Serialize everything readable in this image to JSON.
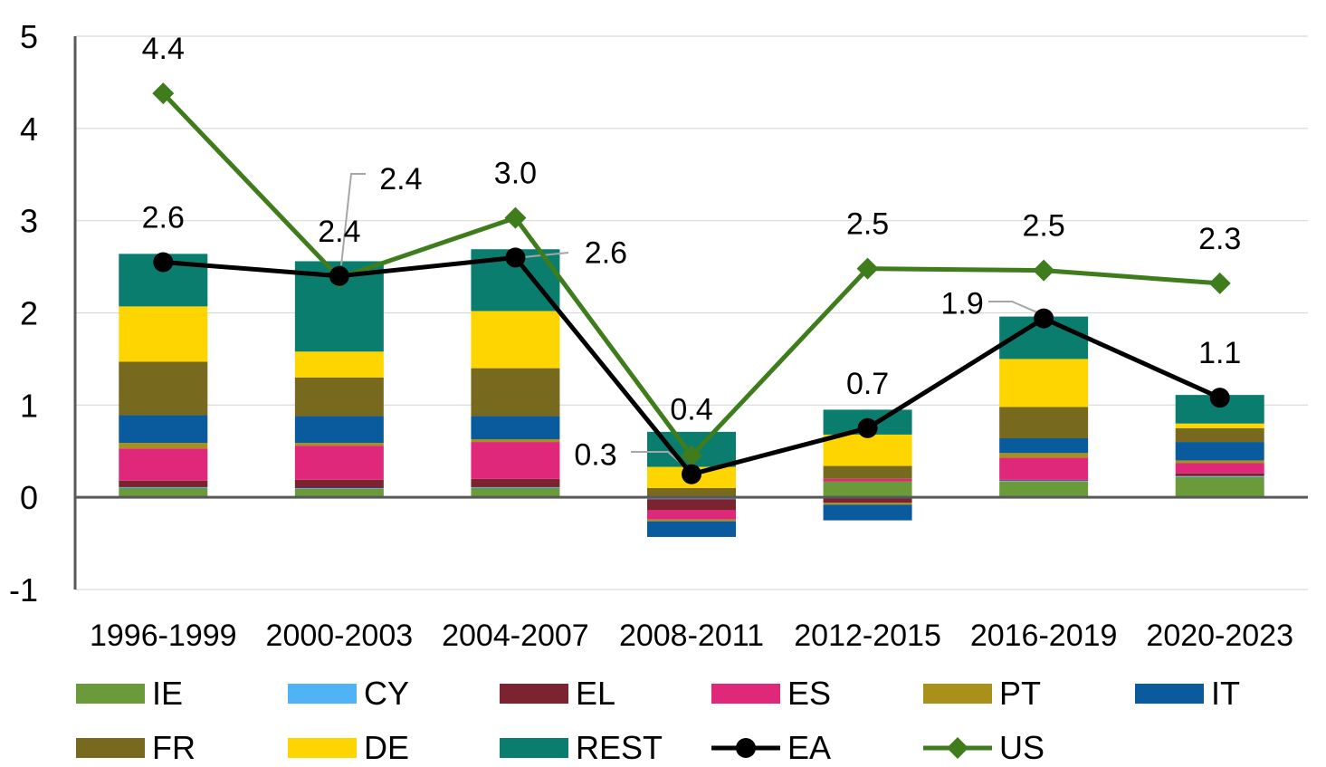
{
  "chart_data": {
    "type": "bar",
    "stacked": true,
    "categories": [
      "1996-1999",
      "2000-2003",
      "2004-2007",
      "2008-2011",
      "2012-2015",
      "2016-2019",
      "2020-2023"
    ],
    "ylim": [
      -1,
      5
    ],
    "yticks": [
      "-1",
      "0",
      "1",
      "2",
      "3",
      "4",
      "5"
    ],
    "grid": true,
    "legend_position": "bottom",
    "series": [
      {
        "name": "IE",
        "color": "#6a9a3a",
        "values": [
          0.1,
          0.09,
          0.1,
          -0.01,
          0.17,
          0.17,
          0.22
        ]
      },
      {
        "name": "CY",
        "color": "#4fb3f6",
        "values": [
          0.01,
          0.01,
          0.01,
          -0.01,
          -0.01,
          0.01,
          0.01
        ]
      },
      {
        "name": "EL",
        "color": "#7b2430",
        "values": [
          0.07,
          0.09,
          0.09,
          -0.12,
          -0.05,
          0.01,
          0.03
        ]
      },
      {
        "name": "ES",
        "color": "#e0287a",
        "values": [
          0.35,
          0.37,
          0.4,
          -0.1,
          0.03,
          0.24,
          0.11
        ]
      },
      {
        "name": "PT",
        "color": "#a8901a",
        "values": [
          0.06,
          0.03,
          0.03,
          -0.02,
          -0.02,
          0.05,
          0.03
        ]
      },
      {
        "name": "IT",
        "color": "#0a5a9e",
        "values": [
          0.3,
          0.29,
          0.25,
          -0.17,
          -0.17,
          0.16,
          0.2
        ]
      },
      {
        "name": "FR",
        "color": "#776a1e",
        "values": [
          0.58,
          0.42,
          0.52,
          0.1,
          0.14,
          0.34,
          0.15
        ]
      },
      {
        "name": "DE",
        "color": "#ffd500",
        "values": [
          0.6,
          0.28,
          0.62,
          0.23,
          0.34,
          0.52,
          0.05
        ]
      },
      {
        "name": "REST",
        "color": "#0a7d6f",
        "values": [
          0.57,
          0.98,
          0.67,
          0.38,
          0.27,
          0.46,
          0.31
        ]
      }
    ],
    "lines": [
      {
        "name": "EA",
        "color": "#000000",
        "marker": "circle",
        "values": [
          2.55,
          2.4,
          2.6,
          0.25,
          0.75,
          1.94,
          1.08
        ],
        "labels": [
          "2.6",
          "2.4",
          "2.6",
          "0.3",
          "0.7",
          "1.9",
          "1.1"
        ]
      },
      {
        "name": "US",
        "color": "#3e7c1c",
        "marker": "diamond",
        "values": [
          4.38,
          2.38,
          3.03,
          0.45,
          2.48,
          2.46,
          2.32
        ],
        "labels": [
          "4.4",
          "2.4",
          "3.0",
          "0.4",
          "2.5",
          "2.5",
          "2.3"
        ]
      }
    ]
  }
}
